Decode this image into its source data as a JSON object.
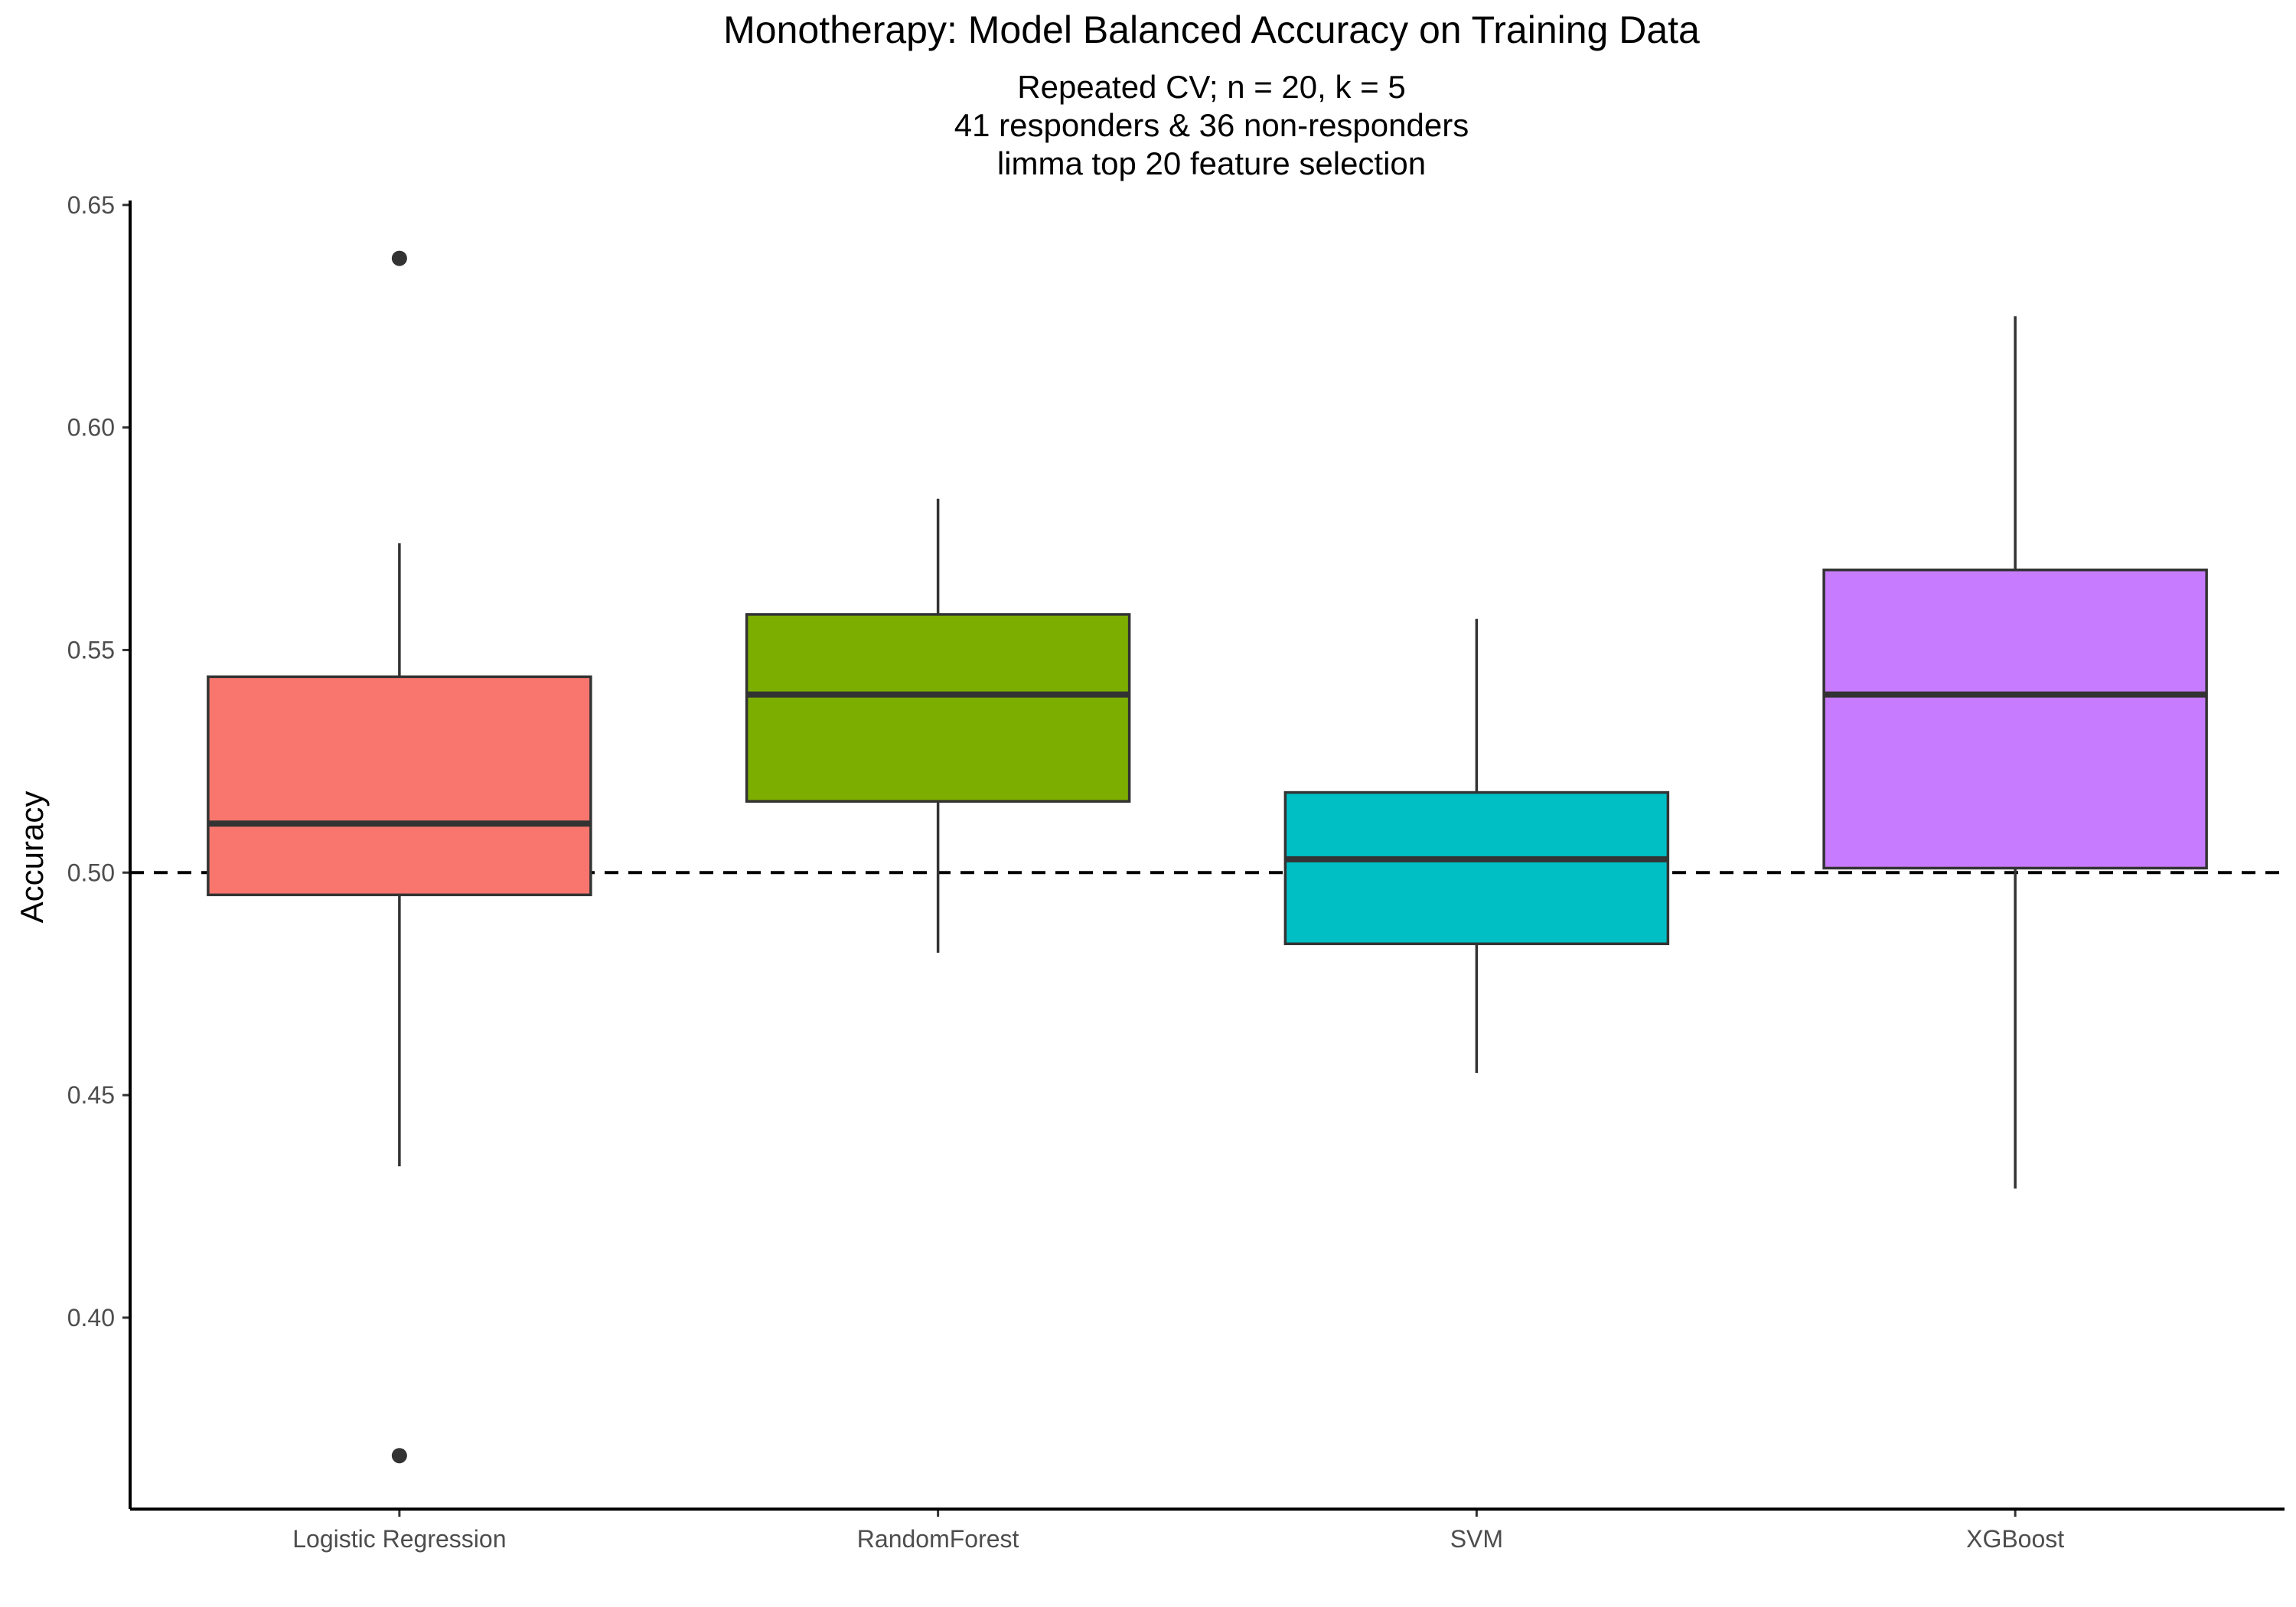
{
  "chart_data": {
    "type": "boxplot",
    "title": "Monotherapy: Model Balanced Accuracy on Training Data",
    "subtitle_lines": [
      "Repeated CV; n = 20, k = 5",
      "41 responders & 36 non-responders",
      "limma top 20 feature selection"
    ],
    "xlabel": "",
    "ylabel": "Accuracy",
    "ylim": [
      0.357,
      0.651
    ],
    "yticks": [
      0.4,
      0.45,
      0.5,
      0.55,
      0.6,
      0.65
    ],
    "ytick_labels": [
      "0.40",
      "0.45",
      "0.50",
      "0.55",
      "0.60",
      "0.65"
    ],
    "reference_line": {
      "y": 0.5,
      "style": "dashed"
    },
    "grid": false,
    "legend": "none",
    "categories": [
      "Logistic Regression",
      "RandomForest",
      "SVM",
      "XGBoost"
    ],
    "boxes": [
      {
        "name": "Logistic Regression",
        "whisker_low": 0.434,
        "q1": 0.495,
        "median": 0.511,
        "q3": 0.544,
        "whisker_high": 0.574,
        "outliers": [
          0.638,
          0.369
        ],
        "color": "#F8766D"
      },
      {
        "name": "RandomForest",
        "whisker_low": 0.482,
        "q1": 0.516,
        "median": 0.54,
        "q3": 0.558,
        "whisker_high": 0.584,
        "outliers": [],
        "color": "#7CAE00"
      },
      {
        "name": "SVM",
        "whisker_low": 0.455,
        "q1": 0.484,
        "median": 0.503,
        "q3": 0.518,
        "whisker_high": 0.557,
        "outliers": [],
        "color": "#00BFC4"
      },
      {
        "name": "XGBoost",
        "whisker_low": 0.429,
        "q1": 0.501,
        "median": 0.54,
        "q3": 0.568,
        "whisker_high": 0.625,
        "outliers": [],
        "color": "#C77CFF"
      }
    ]
  }
}
